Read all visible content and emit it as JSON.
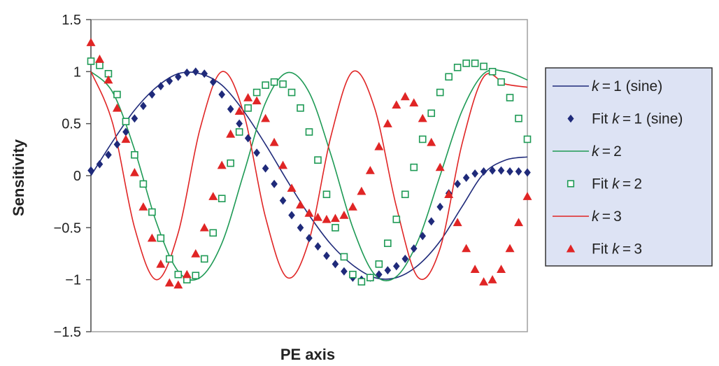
{
  "chart_data": {
    "type": "line",
    "title": "",
    "xlabel": "PE axis",
    "ylabel": "Sensitivity",
    "ylim": [
      -1.5,
      1.5
    ],
    "yticks": [
      1.5,
      1,
      0.5,
      0,
      -0.5,
      -1,
      -1.5
    ],
    "ytick_labels": [
      "1.5",
      "1",
      "0.5",
      "0",
      "−0.5",
      "−1",
      "−1.5"
    ],
    "xlim": [
      0,
      100
    ],
    "grid": false,
    "legend_position": "right",
    "colors": {
      "k1": "#1f2a7a",
      "k2": "#1e9a55",
      "k3": "#e02525",
      "legend_bg": "#dde3f4"
    },
    "legend": [
      {
        "k": "k",
        "rest": " = 1 (sine)",
        "prefix": "",
        "kind": "line",
        "series": "k1"
      },
      {
        "k": "k",
        "rest": " = 1 (sine)",
        "prefix": "Fit ",
        "kind": "diamond",
        "series": "k1"
      },
      {
        "k": "k",
        "rest": " = 2",
        "prefix": "",
        "kind": "line",
        "series": "k2"
      },
      {
        "k": "k",
        "rest": " = 2",
        "prefix": "Fit ",
        "kind": "square",
        "series": "k2"
      },
      {
        "k": "k",
        "rest": " = 3",
        "prefix": "",
        "kind": "line",
        "series": "k3"
      },
      {
        "k": "k",
        "rest": " = 3",
        "prefix": "Fit ",
        "kind": "triangle",
        "series": "k3"
      }
    ],
    "series": [
      {
        "name": "k = 1 (sine)",
        "kind": "line",
        "color": "k1",
        "x": [
          0,
          5,
          10,
          15,
          20,
          25,
          30,
          35,
          40,
          45,
          50,
          55,
          60,
          65,
          70,
          75,
          80,
          85,
          90,
          95,
          100
        ],
        "y": [
          0.0,
          0.33,
          0.63,
          0.85,
          0.98,
          0.98,
          0.87,
          0.62,
          0.3,
          -0.05,
          -0.38,
          -0.66,
          -0.86,
          -0.98,
          -0.98,
          -0.86,
          -0.63,
          -0.3,
          0.02,
          0.15,
          0.18
        ]
      },
      {
        "name": "Fit k = 1 (sine)",
        "kind": "diamond",
        "color": "k1",
        "x": [
          0,
          2,
          4,
          6,
          8,
          10,
          12,
          14,
          16,
          18,
          20,
          22,
          24,
          26,
          28,
          30,
          32,
          34,
          36,
          38,
          40,
          42,
          44,
          46,
          48,
          50,
          52,
          54,
          56,
          58,
          60,
          62,
          64,
          66,
          68,
          70,
          72,
          74,
          76,
          78,
          80,
          82,
          84,
          86,
          88,
          90,
          92,
          94,
          96,
          98,
          100
        ],
        "y": [
          0.05,
          0.11,
          0.2,
          0.3,
          0.42,
          0.55,
          0.67,
          0.78,
          0.86,
          0.91,
          0.95,
          0.99,
          1.0,
          0.98,
          0.9,
          0.78,
          0.64,
          0.5,
          0.36,
          0.22,
          0.07,
          -0.08,
          -0.24,
          -0.38,
          -0.5,
          -0.6,
          -0.68,
          -0.77,
          -0.85,
          -0.92,
          -0.98,
          -1.0,
          -0.98,
          -0.95,
          -0.91,
          -0.87,
          -0.8,
          -0.7,
          -0.58,
          -0.44,
          -0.3,
          -0.17,
          -0.08,
          -0.02,
          0.02,
          0.04,
          0.05,
          0.05,
          0.04,
          0.04,
          0.03
        ]
      },
      {
        "name": "k = 2",
        "kind": "line",
        "color": "k2",
        "x": [
          0,
          5,
          10,
          15,
          20,
          25,
          30,
          35,
          40,
          45,
          50,
          55,
          60,
          65,
          70,
          75,
          80,
          85,
          90,
          95,
          100
        ],
        "y": [
          1.0,
          0.8,
          0.25,
          -0.45,
          -0.92,
          -0.98,
          -0.65,
          0.02,
          0.7,
          0.99,
          0.8,
          0.2,
          -0.5,
          -0.95,
          -0.97,
          -0.62,
          0.0,
          0.62,
          0.98,
          1.0,
          0.92
        ]
      },
      {
        "name": "Fit k = 2",
        "kind": "square",
        "color": "k2",
        "x": [
          0,
          2,
          4,
          6,
          8,
          10,
          12,
          14,
          16,
          18,
          20,
          22,
          24,
          26,
          28,
          30,
          32,
          34,
          36,
          38,
          40,
          42,
          44,
          46,
          48,
          50,
          52,
          54,
          56,
          58,
          60,
          62,
          64,
          66,
          68,
          70,
          72,
          74,
          76,
          78,
          80,
          82,
          84,
          86,
          88,
          90,
          92,
          94,
          96,
          98,
          100
        ],
        "y": [
          1.1,
          1.06,
          0.98,
          0.78,
          0.52,
          0.2,
          -0.08,
          -0.35,
          -0.6,
          -0.8,
          -0.95,
          -1.0,
          -0.96,
          -0.8,
          -0.55,
          -0.22,
          0.12,
          0.42,
          0.65,
          0.8,
          0.87,
          0.9,
          0.88,
          0.8,
          0.65,
          0.42,
          0.15,
          -0.18,
          -0.5,
          -0.78,
          -0.95,
          -1.02,
          -0.98,
          -0.85,
          -0.65,
          -0.42,
          -0.18,
          0.08,
          0.35,
          0.6,
          0.8,
          0.95,
          1.04,
          1.08,
          1.08,
          1.05,
          1.0,
          0.9,
          0.75,
          0.55,
          0.35
        ]
      },
      {
        "name": "k = 3",
        "kind": "line",
        "color": "k3",
        "x": [
          0,
          5,
          10,
          15,
          20,
          25,
          30,
          35,
          40,
          45,
          50,
          55,
          60,
          65,
          70,
          75,
          80,
          85,
          90,
          95,
          100
        ],
        "y": [
          1.0,
          0.5,
          -0.5,
          -1.0,
          -0.55,
          0.45,
          1.0,
          0.6,
          -0.4,
          -0.98,
          -0.62,
          0.38,
          1.0,
          0.65,
          -0.3,
          -0.98,
          -0.7,
          0.3,
          0.95,
          0.88,
          0.85
        ]
      },
      {
        "name": "Fit k = 3",
        "kind": "triangle",
        "color": "k3",
        "x": [
          0,
          2,
          4,
          6,
          8,
          10,
          12,
          14,
          16,
          18,
          20,
          22,
          24,
          26,
          28,
          30,
          32,
          34,
          36,
          38,
          40,
          42,
          44,
          46,
          48,
          50,
          52,
          54,
          56,
          58,
          60,
          62,
          64,
          66,
          68,
          70,
          72,
          74,
          76,
          78,
          80,
          82,
          84,
          86,
          88,
          90,
          92,
          94,
          96,
          98,
          100
        ],
        "y": [
          1.28,
          1.12,
          0.92,
          0.65,
          0.35,
          0.03,
          -0.3,
          -0.6,
          -0.85,
          -1.03,
          -1.05,
          -0.95,
          -0.75,
          -0.5,
          -0.2,
          0.1,
          0.4,
          0.62,
          0.75,
          0.72,
          0.55,
          0.32,
          0.1,
          -0.12,
          -0.28,
          -0.36,
          -0.4,
          -0.42,
          -0.41,
          -0.38,
          -0.3,
          -0.15,
          0.05,
          0.28,
          0.5,
          0.68,
          0.76,
          0.7,
          0.55,
          0.32,
          0.08,
          -0.18,
          -0.45,
          -0.7,
          -0.9,
          -1.02,
          -1.0,
          -0.9,
          -0.7,
          -0.45,
          -0.2
        ]
      }
    ]
  }
}
